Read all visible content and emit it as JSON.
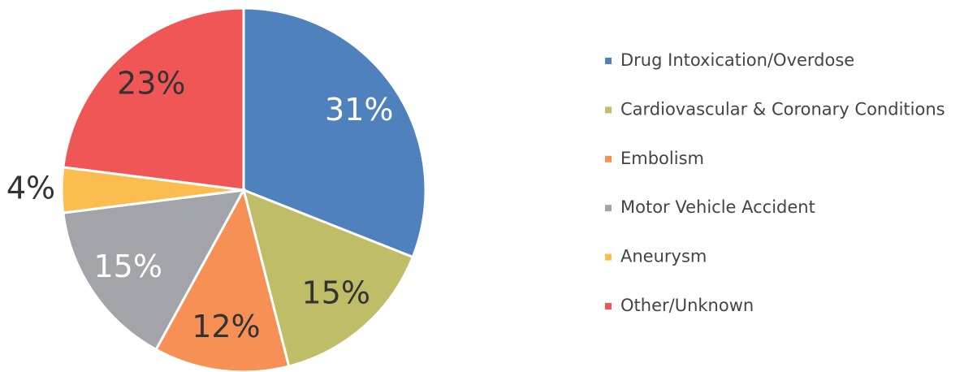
{
  "chart_data": {
    "type": "pie",
    "categories": [
      "Drug Intoxication/Overdose",
      "Cardiovascular & Coronary Conditions",
      "Embolism",
      "Motor Vehicle Accident",
      "Aneurysm",
      "Other/Unknown"
    ],
    "values": [
      31,
      15,
      12,
      15,
      4,
      23
    ],
    "value_labels": [
      "31%",
      "15%",
      "12%",
      "15%",
      "4%",
      "23%"
    ],
    "colors": [
      "#4f81bd",
      "#bfbd68",
      "#f79055",
      "#a3a3aa",
      "#fbbd4f",
      "#f05656"
    ],
    "legend": "right"
  }
}
